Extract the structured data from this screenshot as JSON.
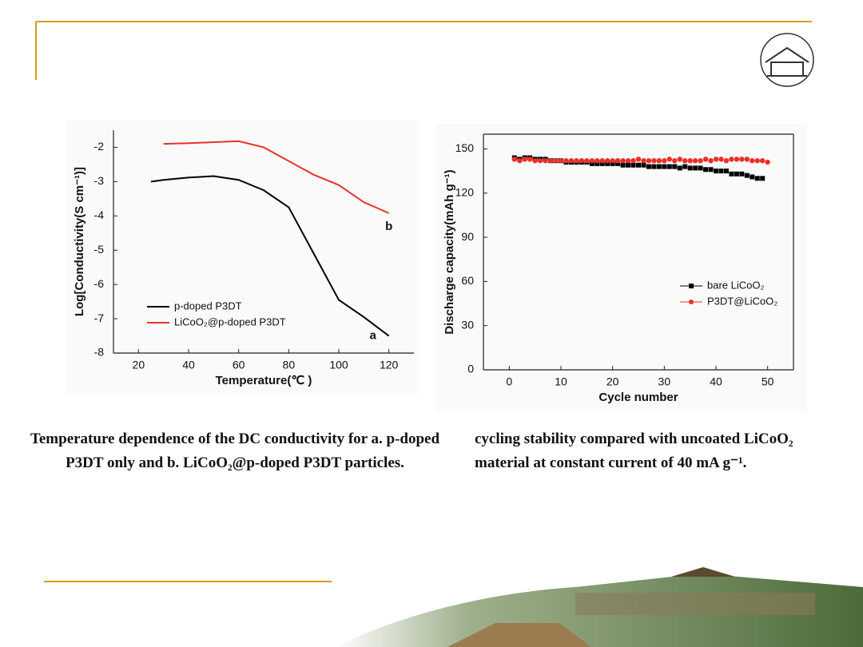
{
  "chart_data": [
    {
      "type": "line",
      "x_label": "Temperature(℃ )",
      "y_label": "Log[Conductivity(S cm⁻¹)]",
      "x": [
        25,
        30,
        40,
        50,
        60,
        70,
        80,
        90,
        100,
        110,
        120
      ],
      "series": [
        {
          "name": "p-doped P3DT",
          "color": "#000000",
          "values": [
            -3.0,
            -2.95,
            -2.88,
            -2.84,
            -2.95,
            -3.25,
            -3.75,
            -5.1,
            -6.45,
            -6.95,
            -7.5
          ]
        },
        {
          "name": "LiCoO₂@p-doped P3DT",
          "color": "#e8312a",
          "values": [
            null,
            -1.9,
            -1.88,
            -1.85,
            -1.82,
            -2.0,
            -2.4,
            -2.8,
            -3.1,
            -3.6,
            -3.92
          ]
        }
      ],
      "annotations": [
        "a",
        "b"
      ],
      "xlim": [
        10,
        130
      ],
      "xticks": [
        20,
        40,
        60,
        80,
        100,
        120
      ],
      "ylim": [
        -8,
        -1.5
      ],
      "yticks": [
        -2,
        -3,
        -4,
        -5,
        -6,
        -7,
        -8
      ],
      "legend": "lower left",
      "frame": false
    },
    {
      "type": "scatter",
      "x_label": "Cycle number",
      "y_label": "Discharge capacity(mAh g⁻¹)",
      "x": [
        1,
        2,
        3,
        4,
        5,
        6,
        7,
        8,
        9,
        10,
        11,
        12,
        13,
        14,
        15,
        16,
        17,
        18,
        19,
        20,
        21,
        22,
        23,
        24,
        25,
        26,
        27,
        28,
        29,
        30,
        31,
        32,
        33,
        34,
        35,
        36,
        37,
        38,
        39,
        40,
        41,
        42,
        43,
        44,
        45,
        46,
        47,
        48,
        49,
        50
      ],
      "series": [
        {
          "name": "bare LiCoO₂",
          "color": "#000000",
          "marker": "square",
          "values": [
            144,
            143,
            144,
            144,
            143,
            143,
            143,
            142,
            142,
            142,
            141,
            141,
            141,
            141,
            141,
            140,
            140,
            140,
            140,
            140,
            140,
            139,
            139,
            139,
            139,
            139,
            138,
            138,
            138,
            138,
            138,
            138,
            137,
            138,
            137,
            137,
            137,
            136,
            136,
            135,
            135,
            135,
            133,
            133,
            133,
            132,
            131,
            130,
            130,
            null
          ]
        },
        {
          "name": "P3DT@LiCoO₂",
          "color": "#e8312a",
          "marker": "circle",
          "values": [
            143,
            142,
            143,
            143,
            142,
            142,
            142,
            142,
            142,
            142,
            142,
            142,
            142,
            142,
            142,
            142,
            142,
            142,
            142,
            142,
            142,
            142,
            142,
            142,
            143,
            142,
            142,
            142,
            142,
            142,
            143,
            142,
            143,
            142,
            142,
            142,
            142,
            143,
            142,
            143,
            143,
            142,
            143,
            143,
            143,
            143,
            142,
            142,
            142,
            141
          ]
        }
      ],
      "xlim": [
        -5,
        55
      ],
      "xticks": [
        0,
        10,
        20,
        30,
        40,
        50
      ],
      "ylim": [
        0,
        160
      ],
      "yticks": [
        0,
        30,
        60,
        90,
        120,
        150
      ],
      "legend": "center right",
      "frame": true
    }
  ],
  "captions": [
    "Temperature dependence of the DC conductivity for a. p-doped P3DT only and b. LiCoO₂@p-doped P3DT particles.",
    "cycling stability compared with uncoated LiCoO₂ material at constant current of 40 mA g⁻¹."
  ]
}
